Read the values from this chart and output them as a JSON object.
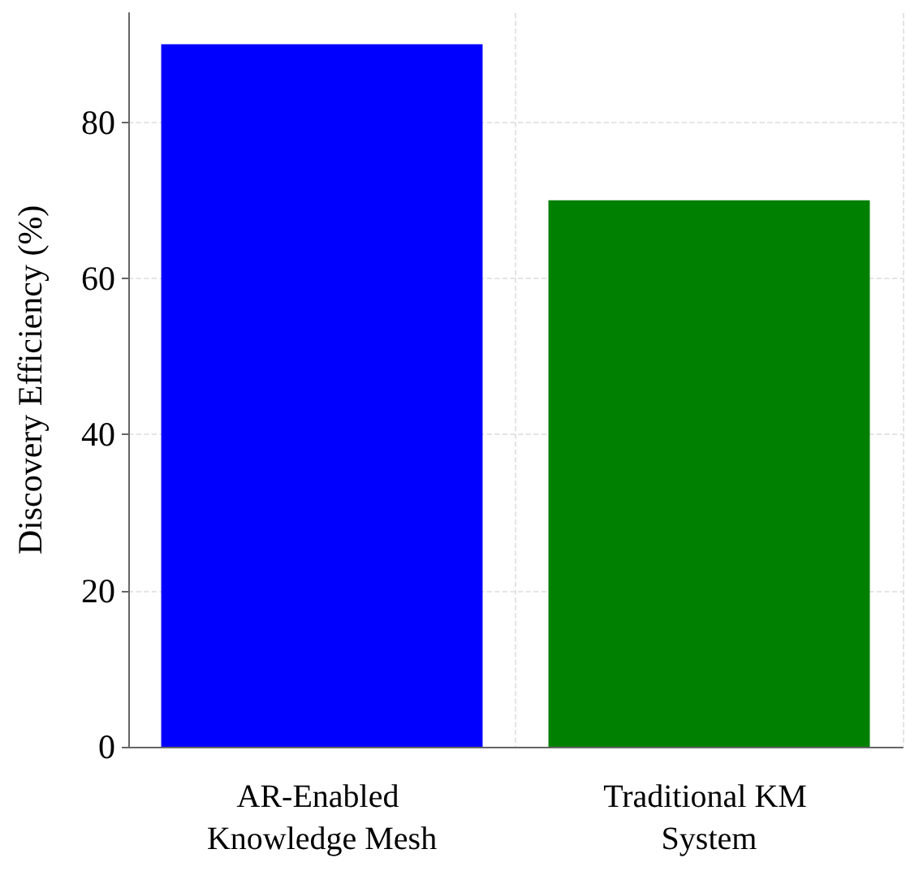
{
  "chart_data": {
    "type": "bar",
    "ylabel": "Discovery Efficiency (%)",
    "categories": [
      "AR-Enabled Knowledge Mesh",
      "Traditional KM System"
    ],
    "values": [
      90,
      70
    ],
    "colors": [
      "#0000ff",
      "#008000"
    ],
    "ylim": [
      0,
      94
    ],
    "yticks": [
      0,
      20,
      40,
      60,
      80
    ],
    "grid": true
  }
}
